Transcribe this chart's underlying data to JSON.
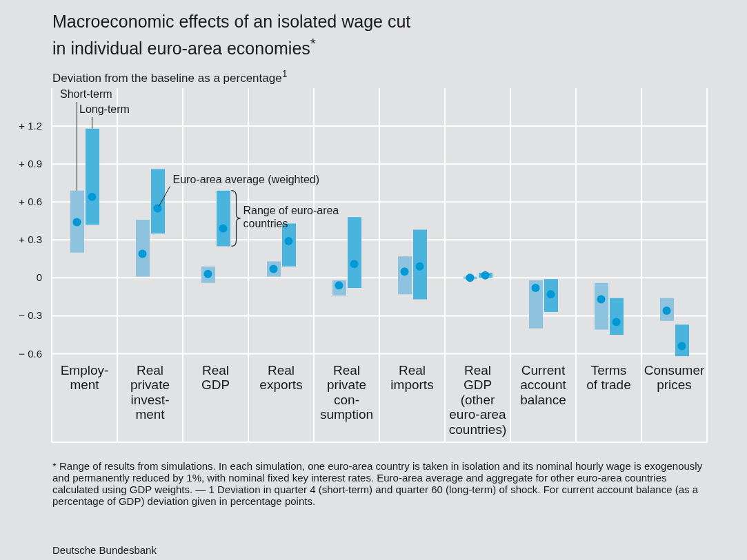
{
  "chart_data": {
    "type": "bar",
    "title": "Macroeconomic effects of an isolated wage cut\nin individual euro-area economies$^{*}$",
    "ylabel": "Deviation from the baseline as a percentage$^{1}$",
    "categories": [
      "Employ-\nment",
      "Real\nprivate\ninvest-\nment",
      "Real\nGDP",
      "Real\nexports",
      "Real\nprivate\ncon-\nsumption",
      "Real\nimports",
      "Real\nGDP\n(other\neuro-area\ncountries)",
      "Current\naccount\nbalance",
      "Terms\nof trade",
      "Consumer\nprices"
    ],
    "series": [
      {
        "name": "Short-term",
        "color": "#8dc3df",
        "base": [
          0.2,
          0.01,
          -0.04,
          0.01,
          -0.14,
          -0.13,
          -0.01,
          -0.4,
          -0.41,
          -0.34
        ],
        "values": [
          0.49,
          0.45,
          0.13,
          0.12,
          0.12,
          0.3,
          0.02,
          0.38,
          0.37,
          0.18
        ]
      },
      {
        "name": "Long-term",
        "color": "#4bb4dd",
        "base": [
          0.42,
          0.35,
          0.25,
          0.09,
          -0.08,
          -0.17,
          0,
          -0.27,
          -0.45,
          -0.62
        ],
        "values": [
          0.76,
          0.51,
          0.44,
          0.34,
          0.56,
          0.55,
          0.04,
          0.26,
          0.29,
          0.25
        ]
      },
      {
        "type": "scatter",
        "color": "#0099d6",
        "values": [
          0.44,
          0.19,
          0.03,
          0.07,
          -0.06,
          0.05,
          0,
          -0.08,
          -0.17,
          -0.26
        ]
      },
      {
        "type": "scatter",
        "color": "#0099d6",
        "values": [
          0.64,
          0.55,
          0.39,
          0.29,
          0.11,
          0.09,
          0.02,
          -0.13,
          -0.35,
          -0.54
        ]
      }
    ],
    "ylim": [
      -1.3,
      1.5
    ],
    "yticks": [
      {
        "value": 1.2,
        "label": "+ 1.2"
      },
      {
        "value": 0.9,
        "label": "+ 0.9"
      },
      {
        "value": 0.6,
        "label": "+ 0.6"
      },
      {
        "value": 0.3,
        "label": "+ 0.3"
      },
      0,
      {
        "value": -0.3,
        "label": "− 0.3"
      },
      {
        "value": -0.6,
        "label": "− 0.6"
      }
    ],
    "grid": true,
    "legend": false,
    "annotations": [
      {
        "text": "Euro-area average (weighted)",
        "x": "Real\nprivate\ninvest-\nment",
        "y": 0.55
      },
      {
        "text": "Range of euro-area countries",
        "x": "Real\nGDP",
        "y": 0.47
      },
      "* Range of results from simulations. In each simulation, one euro-area country is taken in isolation and its nominal hourly wage is exogenously and permanently reduced by 1%, with nominal fixed key interest rates. Euro-area average and aggregate for other euro-area countries calculated using GDP weights. — 1 Deviation in quarter 4 (short-term) and quarter 60 (long-term) of shock. For current account balance (as a percentage of GDP) deviation given in percentage points.",
      "Deutsche Bundesbank"
    ]
  }
}
